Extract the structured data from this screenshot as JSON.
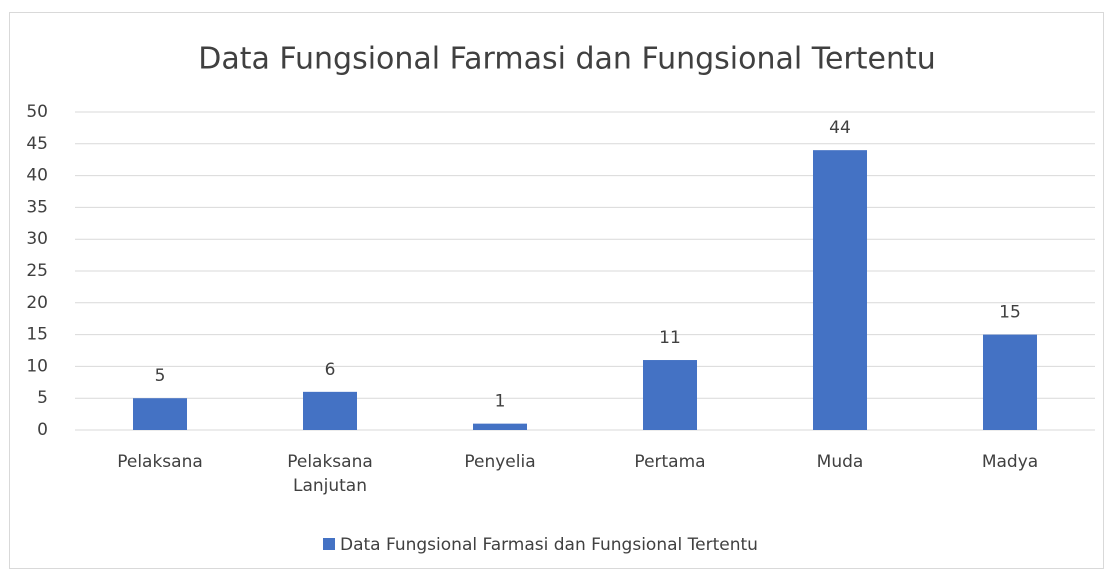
{
  "chart_data": {
    "type": "bar",
    "title": "Data Fungsional Farmasi dan Fungsional Tertentu",
    "categories": [
      "Pelaksana",
      "Pelaksana Lanjutan",
      "Penyelia",
      "Pertama",
      "Muda",
      "Madya"
    ],
    "series": [
      {
        "name": "Data Fungsional Farmasi dan Fungsional Tertentu",
        "color": "#4472c4",
        "values": [
          5,
          6,
          1,
          11,
          44,
          15
        ]
      }
    ],
    "ylim": [
      0,
      50
    ],
    "yticks": [
      0,
      5,
      10,
      15,
      20,
      25,
      30,
      35,
      40,
      45,
      50
    ],
    "grid": true,
    "legend": "bottom"
  }
}
